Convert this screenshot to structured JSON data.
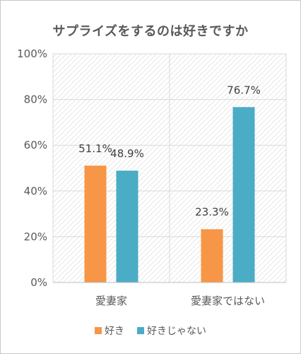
{
  "chart_data": {
    "type": "bar",
    "title": "サプライズをするのは好きですか",
    "categories": [
      "愛妻家",
      "愛妻家ではない"
    ],
    "series": [
      {
        "name": "好き",
        "values": [
          51.1,
          23.3
        ],
        "labels": [
          "51.1%",
          "23.3%"
        ],
        "color": "#f79646"
      },
      {
        "name": "好きじゃない",
        "values": [
          48.9,
          76.7
        ],
        "labels": [
          "48.9%",
          "76.7%"
        ],
        "color": "#4bacc6"
      }
    ],
    "ylim": [
      0,
      100
    ],
    "yticks": [
      "0%",
      "20%",
      "40%",
      "60%",
      "80%",
      "100%"
    ],
    "grid": true,
    "legend": "bottom"
  }
}
